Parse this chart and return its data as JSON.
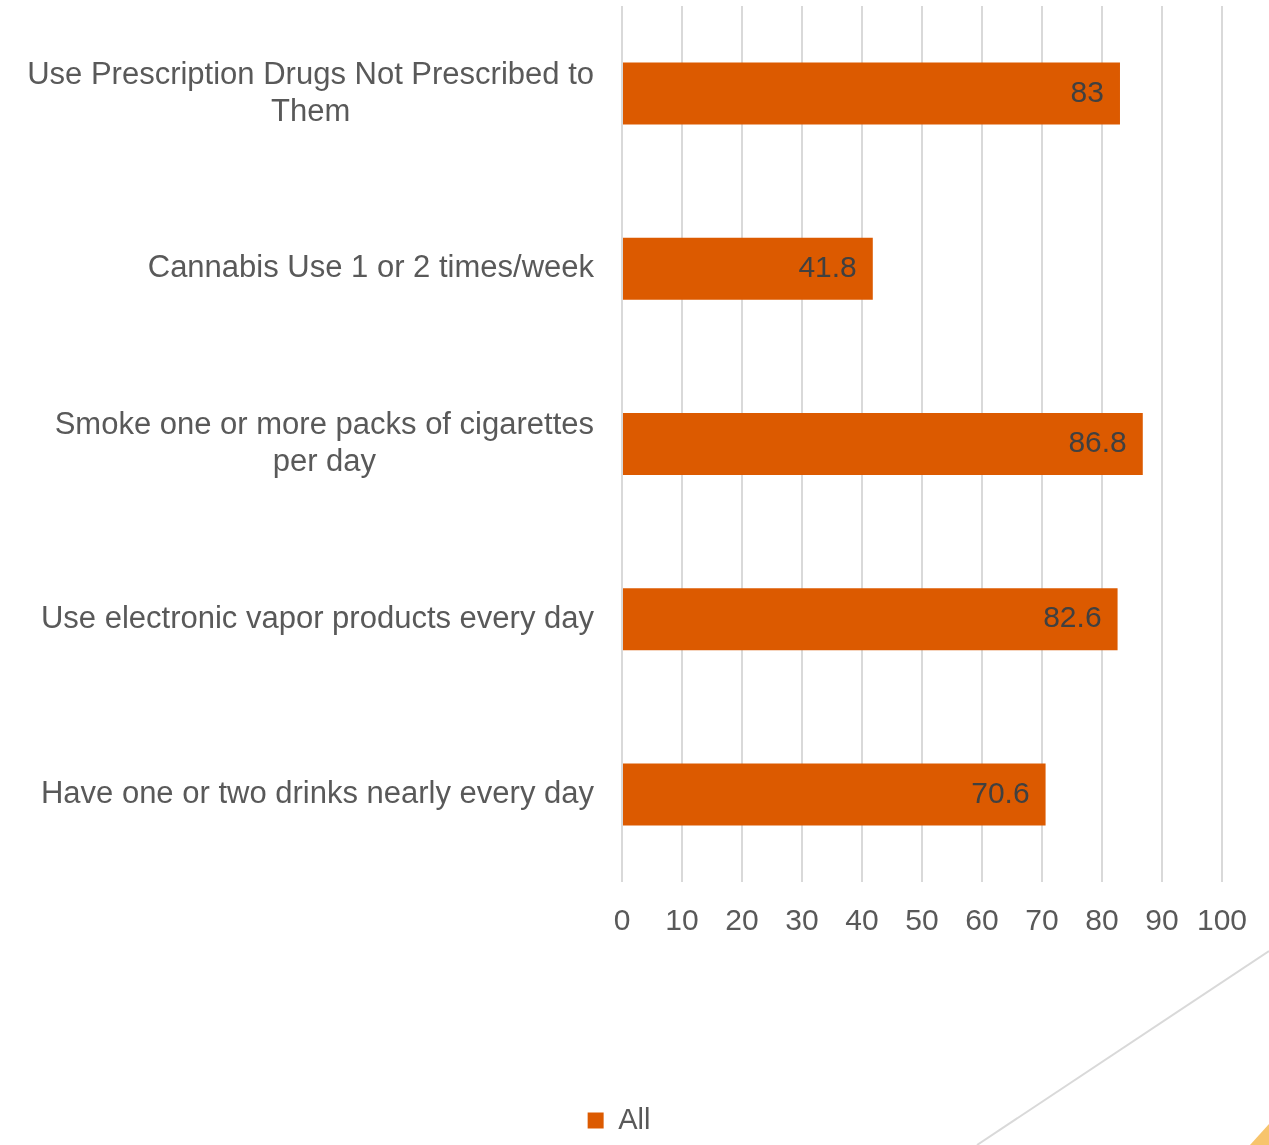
{
  "chart_data": {
    "type": "bar",
    "orientation": "horizontal",
    "categories": [
      "Use Prescription Drugs Not Prescribed to Them",
      "Cannabis Use 1 or 2 times/week",
      "Smoke one or more packs of cigarettes per day",
      "Use electronic vapor products every day",
      "Have one or two drinks nearly every day"
    ],
    "series": [
      {
        "name": "All",
        "color": "#dc5a00",
        "values": [
          83,
          41.8,
          86.8,
          82.6,
          70.6
        ]
      }
    ],
    "xlim": [
      0,
      100
    ],
    "xticks": [
      0,
      10,
      20,
      30,
      40,
      50,
      60,
      70,
      80,
      90,
      100
    ],
    "grid": "x",
    "legend": "bottom",
    "data_labels": true
  }
}
